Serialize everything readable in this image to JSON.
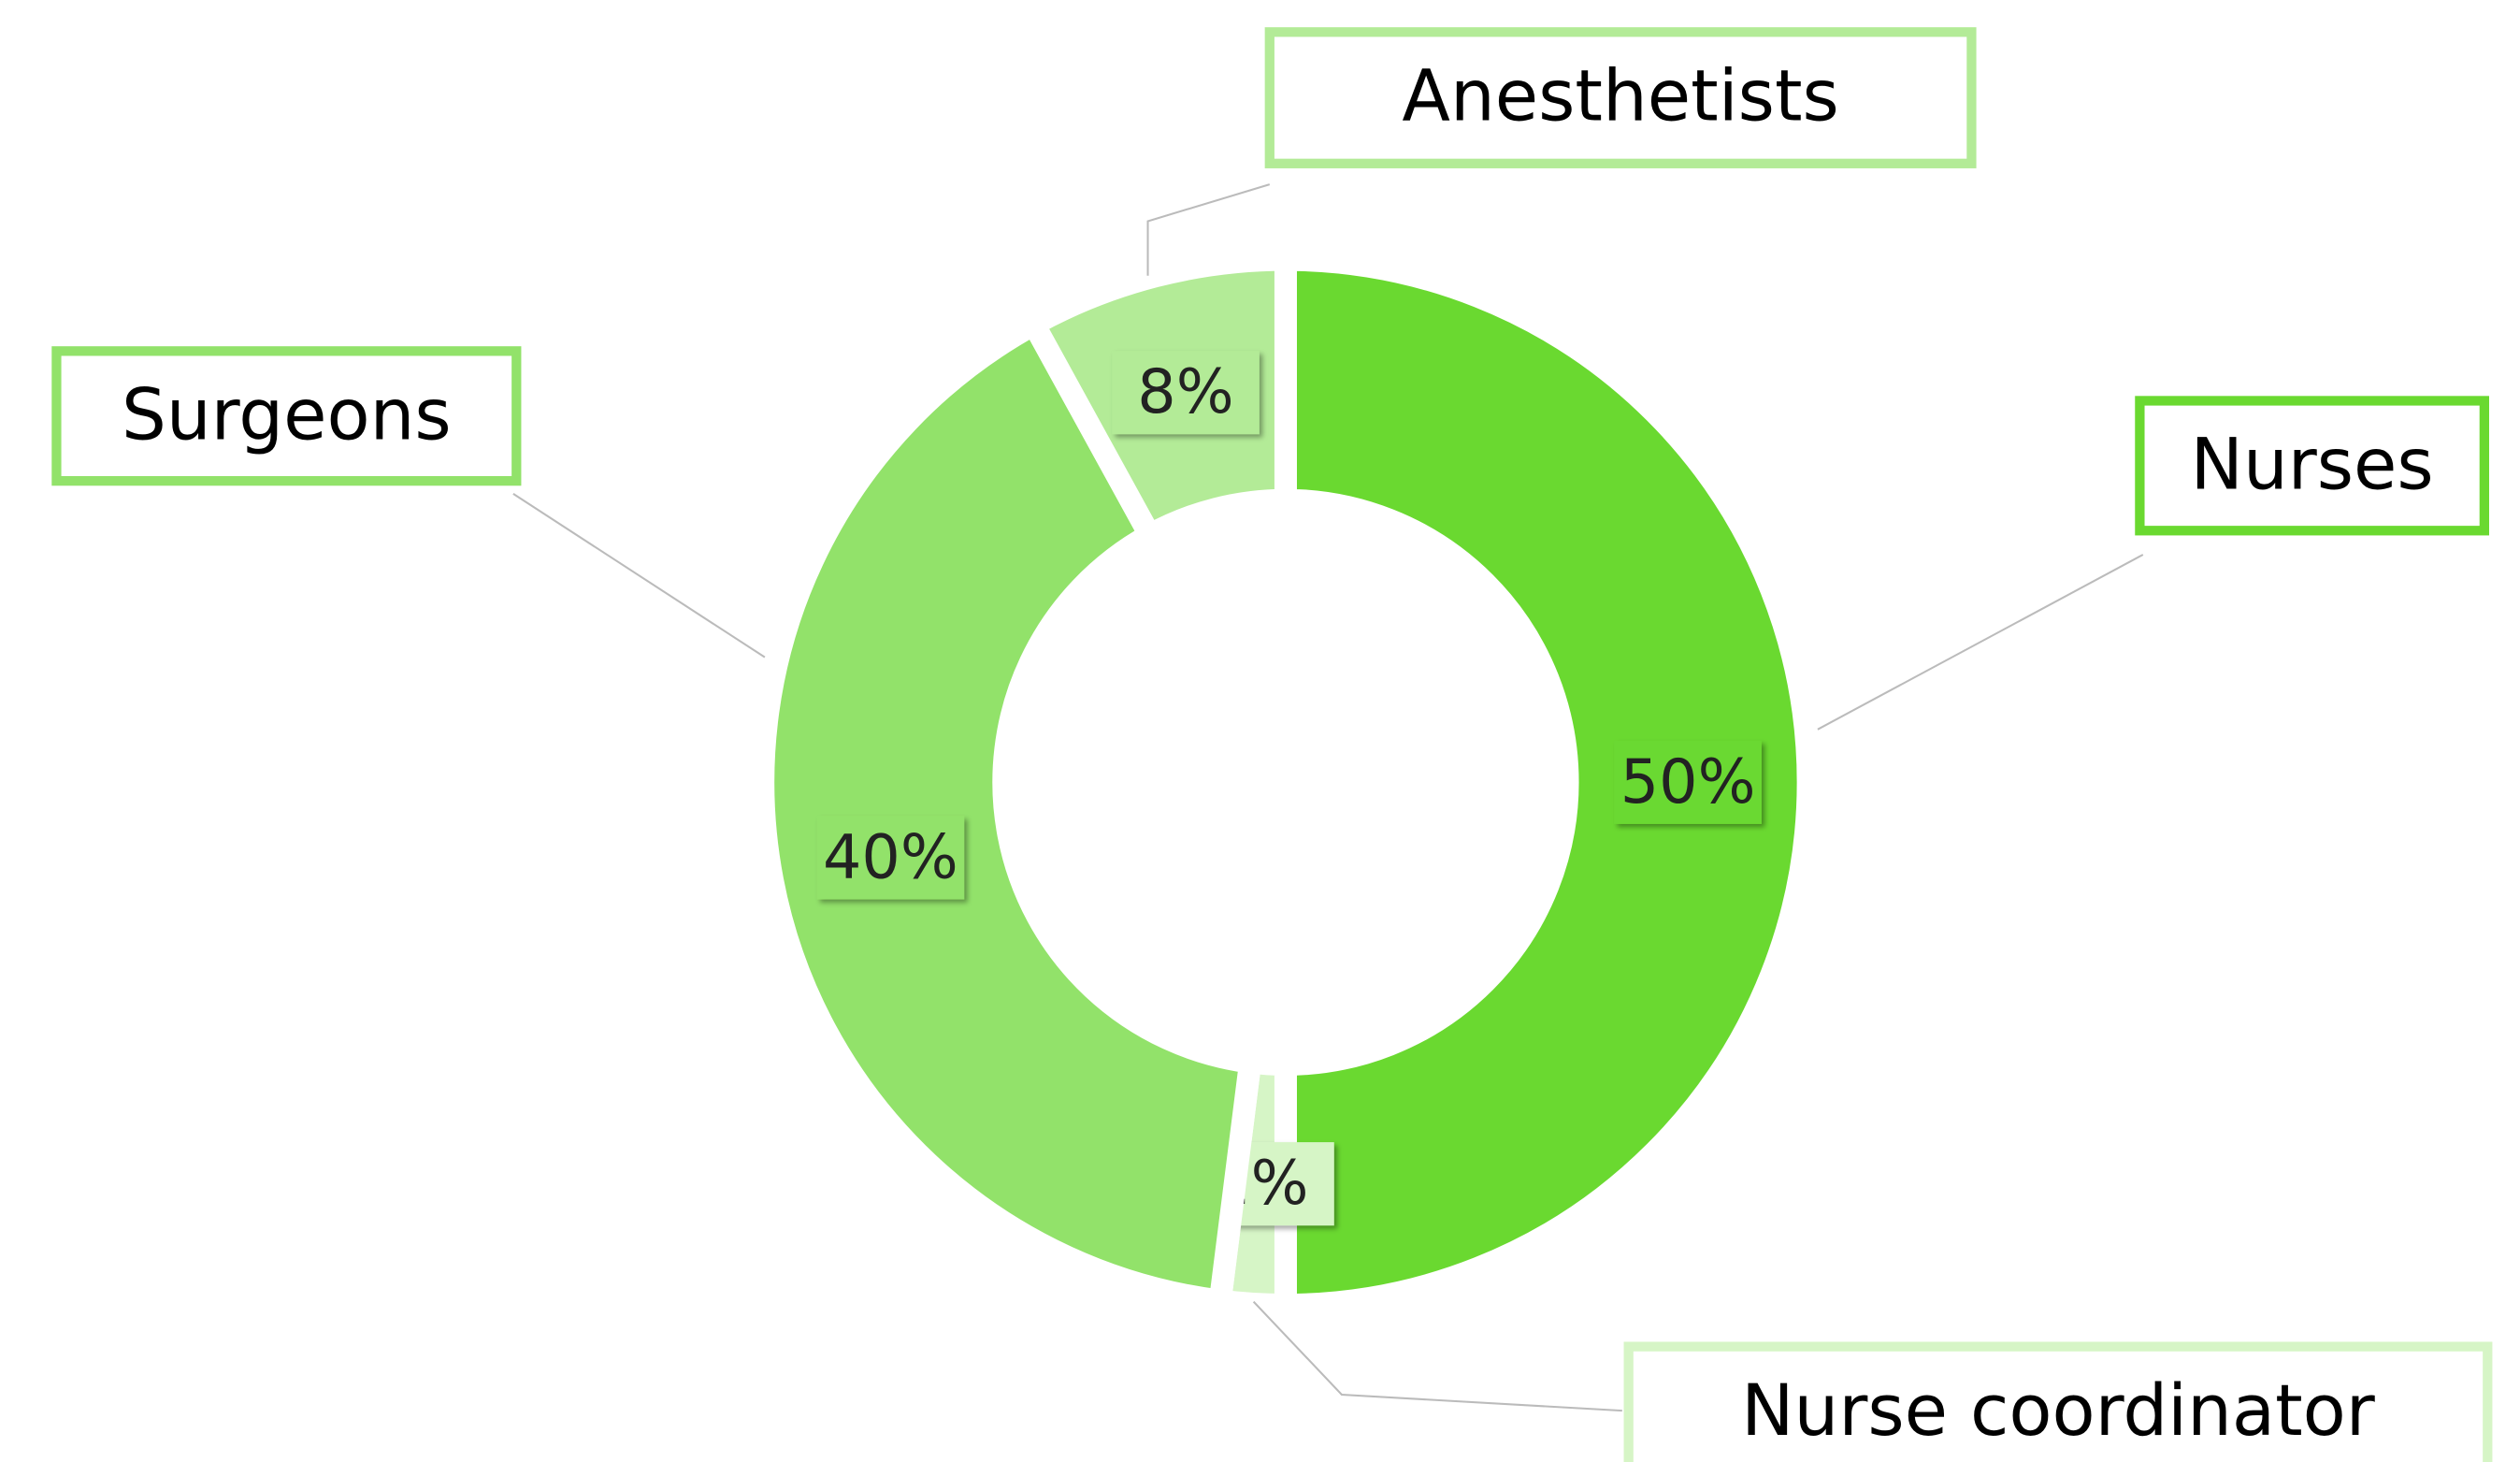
{
  "chart_data": {
    "type": "donut",
    "categories": [
      "Nurses",
      "Nurse coordinator",
      "Surgeons",
      "Anesthetists"
    ],
    "values": [
      50,
      2,
      40,
      8
    ],
    "value_labels": [
      "50%",
      "2%",
      "40%",
      "8%"
    ],
    "colors": [
      "#6ad930",
      "#d6f5c6",
      "#92e26a",
      "#b3eb97"
    ]
  }
}
